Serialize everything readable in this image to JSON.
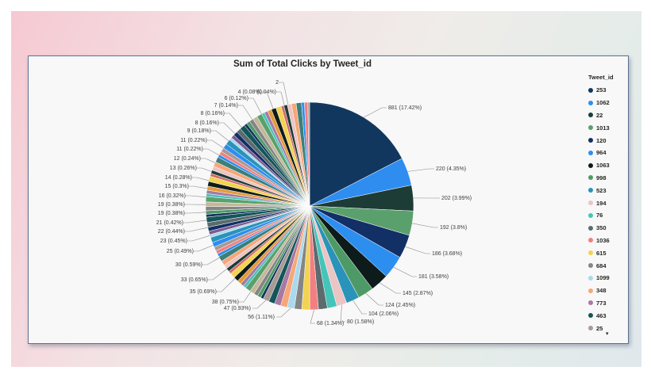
{
  "chart_data": {
    "type": "pie",
    "title": "Sum of Total Clicks by Tweet_id",
    "slices": [
      {
        "id": "253",
        "value": 881,
        "label": "881 (17.42%)",
        "color": "#12375f"
      },
      {
        "id": "1062",
        "value": 220,
        "label": "220 (4.35%)",
        "color": "#2f8df0"
      },
      {
        "id": "22",
        "value": 202,
        "label": "202 (3.99%)",
        "color": "#1d3c36"
      },
      {
        "id": "1013",
        "value": 192,
        "label": "192 (3.8%)",
        "color": "#5aa06c"
      },
      {
        "id": "120",
        "value": 186,
        "label": "186 (3.68%)",
        "color": "#122f66"
      },
      {
        "id": "964",
        "value": 181,
        "label": "181 (3.58%)",
        "color": "#2c8ff0"
      },
      {
        "id": "1063",
        "value": 145,
        "label": "145 (2.87%)",
        "color": "#0d1c1a"
      },
      {
        "id": "998",
        "value": 124,
        "label": "124 (2.45%)",
        "color": "#4e9a66"
      },
      {
        "id": "523",
        "value": 104,
        "label": "104 (2.06%)",
        "color": "#2a93b9"
      },
      {
        "id": "194",
        "value": 80,
        "label": "80 (1.58%)",
        "color": "#ebc4c4"
      },
      {
        "id": "76",
        "value": 75,
        "label": "",
        "color": "#46c4b9"
      },
      {
        "id": "350",
        "value": 70,
        "label": "",
        "color": "#5b6b6e"
      },
      {
        "id": "1036",
        "value": 68,
        "label": "68 (1.34%)",
        "color": "#f37f80"
      },
      {
        "id": "615",
        "value": 62,
        "label": "",
        "color": "#f2d352"
      },
      {
        "id": "684",
        "value": 58,
        "label": "",
        "color": "#858585"
      },
      {
        "id": "1099",
        "value": 56,
        "label": "56 (1.11%)",
        "color": "#aad9ee"
      },
      {
        "id": "348",
        "value": 52,
        "label": "",
        "color": "#f7a678"
      },
      {
        "id": "773",
        "value": 50,
        "label": "",
        "color": "#a779a3"
      },
      {
        "id": "463",
        "value": 48,
        "label": "",
        "color": "#14555a"
      },
      {
        "id": "25",
        "value": 47,
        "label": "47 (0.93%)",
        "color": "#a89a95"
      }
    ],
    "other_labels": [
      "38 (0.75%)",
      "35 (0.69%)",
      "33 (0.65%)",
      "30 (0.59%)",
      "25 (0.49%)",
      "23 (0.45%)",
      "22 (0.44%)",
      "21 (0.42%)",
      "19 (0.38%)",
      "19 (0.38%)",
      "16 (0.32%)",
      "15 (0.3%)",
      "14 (0.28%)",
      "13 (0.26%)",
      "12 (0.24%)",
      "11 (0.22%)",
      "11 (0.22%)",
      "9 (0.18%)",
      "8 (0.16%)",
      "8 (0.16%)",
      "7 (0.14%)",
      "6 (0.12%)",
      "4 (0.08%)",
      "(0.04%)",
      "2"
    ],
    "legend_title": "Tweet_id",
    "legend_more": "▾"
  }
}
